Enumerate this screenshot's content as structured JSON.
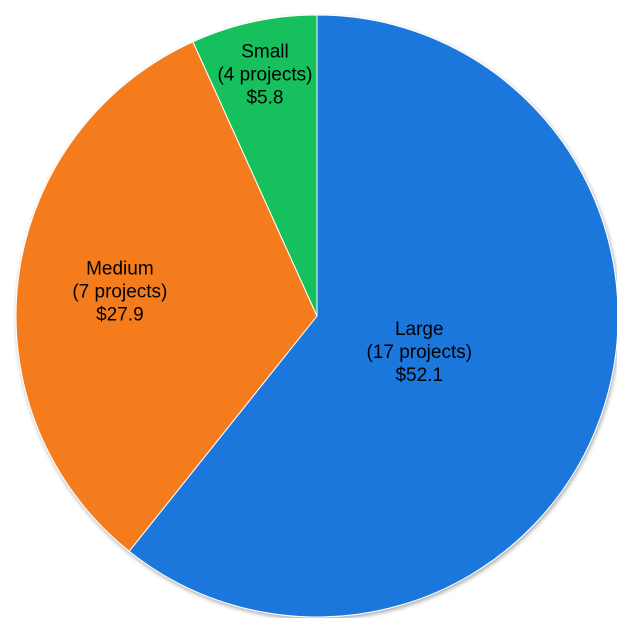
{
  "chart_data": {
    "type": "pie",
    "title": "",
    "start": "12 o'clock",
    "direction": "clockwise",
    "slices": [
      {
        "name": "Large",
        "projects_label": "(17 projects)",
        "value_label": "$52.1",
        "value": 52.1,
        "color": "#1a77dc"
      },
      {
        "name": "Medium",
        "projects_label": "(7 projects)",
        "value_label": "$27.9",
        "value": 27.9,
        "color": "#f47c1c"
      },
      {
        "name": "Small",
        "projects_label": "(4 projects)",
        "value_label": "$5.8",
        "value": 5.8,
        "color": "#19c05c"
      }
    ]
  }
}
